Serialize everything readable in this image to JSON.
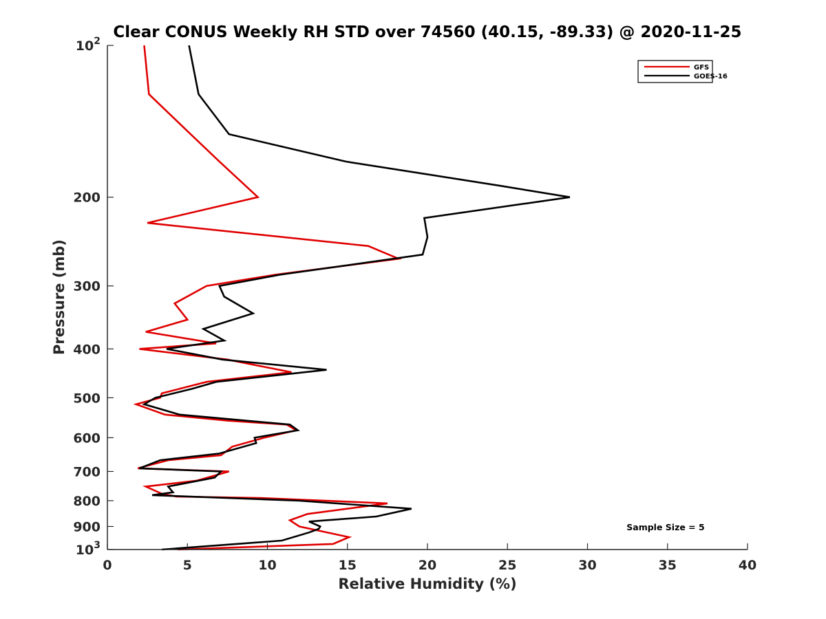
{
  "chart_data": {
    "type": "line",
    "title": "Clear CONUS Weekly RH STD over 74560 (40.15, -89.33) @ 2020-11-25",
    "xlabel": "Relative Humidity (%)",
    "ylabel": "Pressure (mb)",
    "xlim": [
      0,
      40
    ],
    "ylim": [
      100,
      1000
    ],
    "yscale": "log",
    "y_reversed": true,
    "x_ticks": [
      "0",
      "5",
      "10",
      "15",
      "20",
      "25",
      "30",
      "35",
      "40"
    ],
    "y_ticks": [
      {
        "value": 100,
        "label": "10",
        "sup": "2"
      },
      {
        "value": 200,
        "label": "200",
        "sup": ""
      },
      {
        "value": 300,
        "label": "300",
        "sup": ""
      },
      {
        "value": 400,
        "label": "400",
        "sup": ""
      },
      {
        "value": 500,
        "label": "500",
        "sup": ""
      },
      {
        "value": 600,
        "label": "600",
        "sup": ""
      },
      {
        "value": 700,
        "label": "700",
        "sup": ""
      },
      {
        "value": 800,
        "label": "800",
        "sup": ""
      },
      {
        "value": 900,
        "label": "900",
        "sup": ""
      },
      {
        "value": 1000,
        "label": "10",
        "sup": "3"
      }
    ],
    "grid": false,
    "legend_position": "top-right",
    "annotation": "Sample Size = 5",
    "series": [
      {
        "name": "GFS",
        "color": "#e00000",
        "points": [
          [
            2.3,
            100
          ],
          [
            2.6,
            125
          ],
          [
            5.2,
            150
          ],
          [
            7.0,
            170
          ],
          [
            9.4,
            200
          ],
          [
            2.5,
            225
          ],
          [
            16.3,
            250
          ],
          [
            18.2,
            265
          ],
          [
            10.5,
            285
          ],
          [
            6.2,
            300
          ],
          [
            4.2,
            325
          ],
          [
            5.0,
            350
          ],
          [
            2.4,
            370
          ],
          [
            6.8,
            390
          ],
          [
            2.0,
            400
          ],
          [
            7.5,
            420
          ],
          [
            11.5,
            445
          ],
          [
            6.2,
            465
          ],
          [
            3.4,
            490
          ],
          [
            3.3,
            500
          ],
          [
            1.8,
            515
          ],
          [
            3.6,
            540
          ],
          [
            7.5,
            555
          ],
          [
            11.2,
            565
          ],
          [
            11.8,
            580
          ],
          [
            9.8,
            600
          ],
          [
            7.8,
            625
          ],
          [
            7.1,
            650
          ],
          [
            3.8,
            665
          ],
          [
            1.9,
            690
          ],
          [
            7.6,
            700
          ],
          [
            5.6,
            730
          ],
          [
            2.4,
            750
          ],
          [
            3.4,
            775
          ],
          [
            4.3,
            785
          ],
          [
            9.5,
            790
          ],
          [
            17.5,
            810
          ],
          [
            12.5,
            850
          ],
          [
            11.4,
            875
          ],
          [
            12.0,
            900
          ],
          [
            15.1,
            945
          ],
          [
            14.1,
            975
          ],
          [
            4.4,
            1000
          ]
        ]
      },
      {
        "name": "GOES-16",
        "color": "#000000",
        "points": [
          [
            5.1,
            100
          ],
          [
            5.7,
            125
          ],
          [
            7.6,
            150
          ],
          [
            14.9,
            170
          ],
          [
            24.6,
            190
          ],
          [
            28.9,
            200
          ],
          [
            19.8,
            220
          ],
          [
            20.0,
            240
          ],
          [
            19.7,
            260
          ],
          [
            10.8,
            285
          ],
          [
            7.0,
            300
          ],
          [
            7.3,
            315
          ],
          [
            9.1,
            340
          ],
          [
            6.0,
            365
          ],
          [
            7.3,
            385
          ],
          [
            3.7,
            400
          ],
          [
            7.2,
            420
          ],
          [
            13.7,
            440
          ],
          [
            6.8,
            465
          ],
          [
            5.3,
            480
          ],
          [
            3.0,
            500
          ],
          [
            2.3,
            515
          ],
          [
            4.5,
            540
          ],
          [
            11.4,
            565
          ],
          [
            11.9,
            580
          ],
          [
            9.2,
            600
          ],
          [
            9.3,
            615
          ],
          [
            7.0,
            645
          ],
          [
            3.3,
            665
          ],
          [
            2.0,
            690
          ],
          [
            7.1,
            700
          ],
          [
            6.7,
            720
          ],
          [
            3.8,
            750
          ],
          [
            4.1,
            770
          ],
          [
            2.8,
            780
          ],
          [
            12.0,
            800
          ],
          [
            19.0,
            830
          ],
          [
            16.8,
            860
          ],
          [
            12.6,
            880
          ],
          [
            13.3,
            900
          ],
          [
            13.2,
            910
          ],
          [
            12.6,
            925
          ],
          [
            10.9,
            960
          ],
          [
            3.4,
            1000
          ]
        ]
      }
    ]
  }
}
